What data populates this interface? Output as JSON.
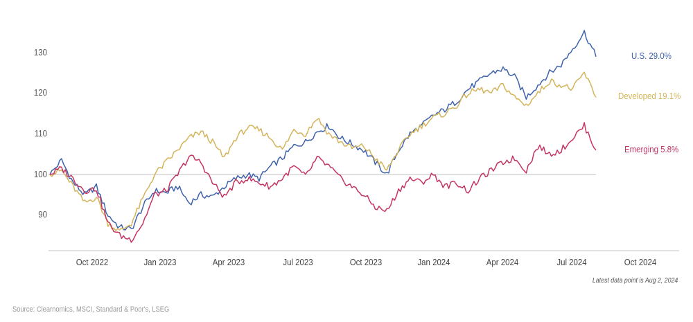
{
  "chart_data": {
    "type": "line",
    "title": "",
    "xlabel": "",
    "ylabel": "",
    "ylim": [
      84,
      137
    ],
    "grid": false,
    "reference_line": 100,
    "y_ticks": [
      90,
      100,
      110,
      120,
      130
    ],
    "x_ticks": [
      "Oct 2022",
      "Jan 2023",
      "Apr 2023",
      "Jul 2023",
      "Oct 2023",
      "Jan 2024",
      "Apr 2024",
      "Jul 2024",
      "Oct 2024"
    ],
    "x": [
      "Aug 2022",
      "Sep 2022",
      "Sep 2022",
      "Oct 2022",
      "Oct 2022",
      "Nov 2022",
      "Nov 2022",
      "Dec 2022",
      "Dec 2022",
      "Jan 2023",
      "Jan 2023",
      "Feb 2023",
      "Feb 2023",
      "Mar 2023",
      "Mar 2023",
      "Apr 2023",
      "Apr 2023",
      "May 2023",
      "May 2023",
      "Jun 2023",
      "Jun 2023",
      "Jul 2023",
      "Jul 2023",
      "Aug 2023",
      "Aug 2023",
      "Sep 2023",
      "Sep 2023",
      "Oct 2023",
      "Oct 2023",
      "Nov 2023",
      "Nov 2023",
      "Dec 2023",
      "Dec 2023",
      "Jan 2024",
      "Jan 2024",
      "Feb 2024",
      "Feb 2024",
      "Mar 2024",
      "Mar 2024",
      "Apr 2024",
      "Apr 2024",
      "May 2024",
      "May 2024",
      "Jun 2024",
      "Jun 2024",
      "Jul 2024",
      "Jul 2024",
      "Aug 2024"
    ],
    "series": [
      {
        "name": "U.S.",
        "label": "U.S. 29.0%",
        "return_pct": 29.0,
        "color": "#3f62ad",
        "values": [
          100,
          103.5,
          98,
          95,
          97,
          90,
          87,
          86.5,
          92,
          96,
          95.5,
          97,
          93,
          95,
          94.5,
          97,
          99,
          100,
          99,
          102,
          104,
          107,
          108,
          110.5,
          112,
          109,
          107.5,
          106,
          103,
          100,
          106,
          110,
          112,
          114.5,
          116,
          118,
          121,
          123,
          125,
          126,
          124,
          119,
          122,
          125,
          127,
          131,
          135,
          129
        ]
      },
      {
        "name": "Developed",
        "label": "Developed 19.1%",
        "return_pct": 19.1,
        "color": "#d4b45a",
        "values": [
          100,
          101,
          97,
          93,
          94.5,
          88,
          86,
          88,
          94,
          100,
          103,
          106,
          109,
          110.5,
          108,
          104,
          109,
          111.5,
          111,
          109,
          106,
          111,
          110,
          114,
          110,
          108,
          106.5,
          107,
          104,
          101,
          106,
          110,
          112,
          114,
          115,
          117,
          120,
          121,
          120,
          122,
          119,
          117,
          120,
          123,
          122,
          121,
          125,
          119
        ]
      },
      {
        "name": "Emerging",
        "label": "Emerging 5.8%",
        "return_pct": 5.8,
        "color": "#c43461",
        "values": [
          100,
          101.5,
          99,
          96,
          96.5,
          88,
          85,
          84,
          88,
          95,
          96,
          100,
          104.5,
          103,
          98,
          94.5,
          98,
          99,
          98,
          97,
          99,
          102,
          99.5,
          104,
          102,
          99,
          97,
          95,
          92,
          91,
          96,
          99,
          98,
          100,
          97,
          98,
          96,
          99,
          101,
          103,
          104,
          101,
          107,
          105,
          106,
          109,
          112,
          106
        ]
      }
    ],
    "legend_position": "right, inline at series ends",
    "note": "Latest data point is Aug 2, 2024",
    "source": "Source: Clearnomics, MSCI, Standard & Poor's, LSEG"
  },
  "axis": {
    "y_labels": [
      "130",
      "120",
      "110",
      "100",
      "90"
    ],
    "x_labels": [
      "Oct 2022",
      "Jan 2023",
      "Apr 2023",
      "Jul 2023",
      "Oct 2023",
      "Jan 2024",
      "Apr 2024",
      "Jul 2024",
      "Oct 2024"
    ]
  },
  "legend": {
    "us": "U.S. 29.0%",
    "developed": "Developed 19.1%",
    "emerging": "Emerging 5.8%"
  },
  "footer": {
    "note": "Latest data point is Aug 2, 2024",
    "source": "Source: Clearnomics, MSCI, Standard & Poor's, LSEG"
  }
}
